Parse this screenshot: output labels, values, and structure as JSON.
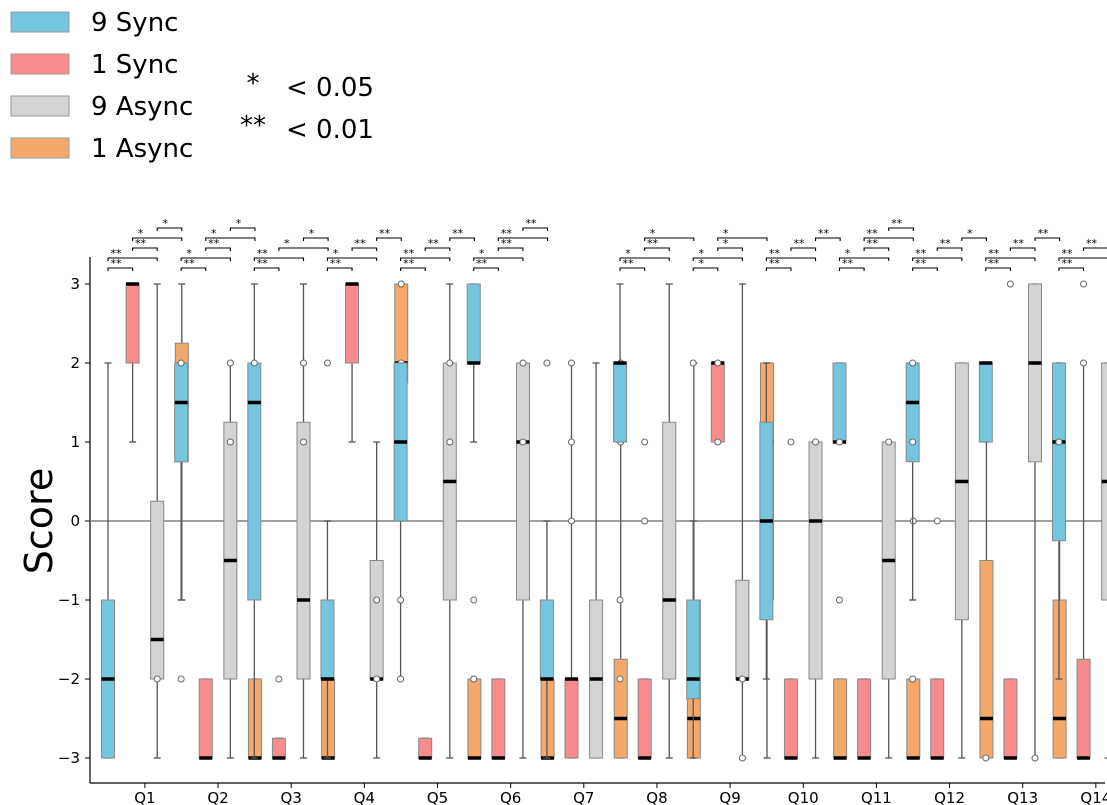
{
  "chart_data": {
    "type": "box",
    "ylabel": "Score",
    "ylim": [
      -3.3,
      3.3
    ],
    "yticks": [
      -3,
      -2,
      -1,
      0,
      1,
      2,
      3
    ],
    "ytick_labels": [
      "−3",
      "−2",
      "−1",
      "0",
      "1",
      "2",
      "3"
    ],
    "categories": [
      "Q1",
      "Q2",
      "Q3",
      "Q4",
      "Q5",
      "Q6",
      "Q7",
      "Q8",
      "Q9",
      "Q10",
      "Q11",
      "Q12",
      "Q13",
      "Q14"
    ],
    "reference_line": 0,
    "legend_position": "top-left",
    "series": [
      {
        "name": "9 Sync",
        "color": "#74C6DF"
      },
      {
        "name": "1 Sync",
        "color": "#F88C8C"
      },
      {
        "name": "9 Async",
        "color": "#D3D3D3"
      },
      {
        "name": "1 Async",
        "color": "#F4A86A"
      }
    ],
    "significance_legend": [
      {
        "symbol": "*",
        "label": "< 0.05"
      },
      {
        "symbol": "**",
        "label": "< 0.01"
      }
    ],
    "boxes": [
      [
        [
          -3,
          -3,
          -2,
          -1,
          2,
          []
        ],
        [
          1,
          2,
          3,
          3,
          3,
          []
        ],
        [
          -3,
          -2,
          -1.5,
          0.25,
          3,
          [
            -2
          ]
        ],
        [
          -1,
          0.75,
          1.5,
          2.25,
          3,
          []
        ]
      ],
      [
        [
          -1,
          0.75,
          1.5,
          2,
          2,
          [
            -2,
            2
          ]
        ],
        [
          -3,
          -3,
          -3,
          -2,
          -2,
          []
        ],
        [
          -3,
          -2,
          -0.5,
          1.25,
          2,
          [
            2,
            1
          ]
        ],
        [
          -3,
          -3,
          -3,
          -2,
          -2,
          []
        ]
      ],
      [
        [
          -3,
          -1,
          1.5,
          2,
          3,
          [
            2
          ]
        ],
        [
          -3,
          -3,
          -3,
          -2.75,
          -2.75,
          [
            -2
          ]
        ],
        [
          -3,
          -2,
          -1,
          1.25,
          3,
          [
            2,
            1
          ]
        ],
        [
          -3,
          -3,
          -3,
          -2,
          -2,
          []
        ]
      ],
      [
        [
          -3,
          -2,
          -2,
          -1,
          0,
          [
            2
          ]
        ],
        [
          1,
          2,
          3,
          3,
          3,
          []
        ],
        [
          -3,
          -2,
          -2,
          -0.5,
          1,
          [
            -1,
            -2
          ]
        ],
        [
          1,
          1.75,
          2,
          3,
          3,
          [
            3,
            2
          ]
        ]
      ],
      [
        [
          -2,
          0,
          1,
          2,
          2,
          [
            -1,
            -2
          ]
        ],
        [
          -3,
          -3,
          -3,
          -2.75,
          -2.75,
          []
        ],
        [
          -3,
          -1,
          0.5,
          2,
          3,
          [
            2,
            1
          ]
        ],
        [
          -3,
          -3,
          -3,
          -2,
          -2,
          []
        ]
      ],
      [
        [
          1,
          2,
          2,
          3,
          3,
          [
            -1,
            -2
          ]
        ],
        [
          -3,
          -3,
          -3,
          -2,
          -2,
          []
        ],
        [
          -3,
          -1,
          1,
          2,
          2,
          [
            2,
            1
          ]
        ],
        [
          -3,
          -3,
          -3,
          -2,
          -2,
          []
        ]
      ],
      [
        [
          -3,
          -2,
          -2,
          -1,
          0,
          [
            2
          ]
        ],
        [
          -3,
          -3,
          -2,
          -2,
          2,
          [
            2,
            1,
            0
          ]
        ],
        [
          -3,
          -3,
          -2,
          -1,
          2,
          []
        ],
        [
          -3,
          -3,
          -2.5,
          -1.75,
          2,
          [
            2,
            1
          ]
        ]
      ],
      [
        [
          1,
          1,
          2,
          2,
          3,
          [
            -1,
            -2
          ]
        ],
        [
          -3,
          -3,
          -3,
          -2,
          -2,
          [
            1,
            0
          ]
        ],
        [
          -3,
          -2,
          -1,
          1.25,
          3,
          []
        ],
        [
          -3,
          -3,
          -2.5,
          -1,
          2,
          []
        ]
      ],
      [
        [
          -3,
          -2.25,
          -2,
          -1,
          0,
          [
            2
          ]
        ],
        [
          1,
          1,
          2,
          2,
          2,
          [
            2,
            1
          ]
        ],
        [
          -3,
          -2,
          -2,
          -0.75,
          3,
          [
            -2,
            -3
          ]
        ],
        [
          -3,
          -1,
          1,
          2,
          2,
          []
        ]
      ],
      [
        [
          -2,
          -1.25,
          0,
          1.25,
          2,
          []
        ],
        [
          -3,
          -3,
          -3,
          -2,
          -2,
          [
            1
          ]
        ],
        [
          -3,
          -2,
          0,
          1,
          1,
          [
            1
          ]
        ],
        [
          -3,
          -3,
          -3,
          -2,
          -2,
          []
        ]
      ],
      [
        [
          1,
          1,
          1,
          2,
          2,
          [
            1,
            -1
          ]
        ],
        [
          -3,
          -3,
          -3,
          -2,
          -2,
          []
        ],
        [
          -3,
          -2,
          -0.5,
          1,
          1,
          [
            1
          ]
        ],
        [
          -3,
          -3,
          -3,
          -2,
          -2,
          [
            0
          ]
        ]
      ],
      [
        [
          -1,
          0.75,
          1.5,
          2,
          2,
          [
            2,
            1,
            -2
          ]
        ],
        [
          -3,
          -3,
          -3,
          -2,
          -2,
          [
            0
          ]
        ],
        [
          -3,
          -1.25,
          0.5,
          2,
          2,
          []
        ],
        [
          -3,
          -3,
          -2.5,
          -0.5,
          2,
          []
        ]
      ],
      [
        [
          1,
          1,
          2,
          2,
          2,
          [
            -3
          ]
        ],
        [
          -3,
          -3,
          -3,
          -2,
          -2,
          [
            3
          ]
        ],
        [
          -3,
          0.75,
          2,
          3,
          3,
          [
            -3
          ]
        ],
        [
          -3,
          -3,
          -2.5,
          -1,
          2,
          []
        ]
      ],
      [
        [
          -2,
          -0.25,
          1,
          2,
          2,
          [
            1
          ]
        ],
        [
          -3,
          -3,
          -3,
          -1.75,
          2,
          [
            3,
            2
          ]
        ],
        [
          -3,
          -1,
          0.5,
          2,
          2,
          []
        ],
        [
          -3,
          -3,
          -2.5,
          -1,
          2,
          []
        ]
      ]
    ],
    "significance": [
      [
        [
          0,
          1,
          "**"
        ],
        [
          0,
          2,
          "**"
        ],
        [
          1,
          2,
          "**"
        ],
        [
          1,
          3,
          "*"
        ],
        [
          2,
          3,
          "*"
        ]
      ],
      [
        [
          0,
          1,
          "**"
        ],
        [
          0,
          2,
          "*"
        ],
        [
          1,
          2,
          "**"
        ],
        [
          1,
          3,
          "*"
        ],
        [
          2,
          3,
          "*"
        ]
      ],
      [
        [
          0,
          1,
          "**"
        ],
        [
          0,
          2,
          "**"
        ],
        [
          1,
          3,
          "*"
        ],
        [
          2,
          3,
          "*"
        ]
      ],
      [
        [
          0,
          1,
          "**"
        ],
        [
          0,
          2,
          "*"
        ],
        [
          1,
          2,
          "**"
        ],
        [
          2,
          3,
          "**"
        ]
      ],
      [
        [
          0,
          1,
          "**"
        ],
        [
          0,
          2,
          "**"
        ],
        [
          1,
          2,
          "**"
        ],
        [
          2,
          3,
          "**"
        ]
      ],
      [
        [
          0,
          1,
          "**"
        ],
        [
          0,
          2,
          "*"
        ],
        [
          1,
          2,
          "**"
        ],
        [
          1,
          3,
          "**"
        ],
        [
          2,
          3,
          "**"
        ]
      ],
      [],
      [
        [
          0,
          1,
          "**"
        ],
        [
          0,
          2,
          "*"
        ],
        [
          1,
          2,
          "**"
        ],
        [
          1,
          3,
          "*"
        ]
      ],
      [
        [
          0,
          1,
          "*"
        ],
        [
          0,
          2,
          "*"
        ],
        [
          1,
          2,
          "*"
        ],
        [
          1,
          3,
          "*"
        ]
      ],
      [
        [
          0,
          1,
          "**"
        ],
        [
          0,
          2,
          "**"
        ],
        [
          1,
          2,
          "**"
        ],
        [
          2,
          3,
          "**"
        ]
      ],
      [
        [
          0,
          1,
          "**"
        ],
        [
          0,
          2,
          "*"
        ],
        [
          1,
          2,
          "**"
        ],
        [
          1,
          3,
          "**"
        ],
        [
          2,
          3,
          "**"
        ]
      ],
      [
        [
          0,
          1,
          "**"
        ],
        [
          0,
          2,
          "**"
        ],
        [
          1,
          2,
          "**"
        ],
        [
          2,
          3,
          "*"
        ]
      ],
      [
        [
          0,
          1,
          "**"
        ],
        [
          0,
          2,
          "**"
        ],
        [
          1,
          2,
          "**"
        ],
        [
          2,
          3,
          "**"
        ]
      ],
      [
        [
          0,
          1,
          "**"
        ],
        [
          0,
          2,
          "**"
        ],
        [
          1,
          2,
          "**"
        ],
        [
          2,
          3,
          "**"
        ]
      ]
    ]
  }
}
